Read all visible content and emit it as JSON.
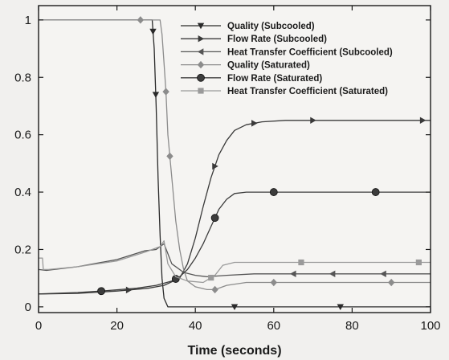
{
  "chart_data": {
    "type": "line",
    "title": "",
    "xlabel": "Time (seconds)",
    "ylabel": "",
    "xlim": [
      0,
      100
    ],
    "ylim": [
      -0.02,
      1.05
    ],
    "xticks": [
      "0",
      "20",
      "40",
      "60",
      "80",
      "100"
    ],
    "xtick_values": [
      0,
      20,
      40,
      60,
      80,
      100
    ],
    "yticks": [
      "0",
      "0.2",
      "0.4",
      "0.6",
      "0.8",
      "1"
    ],
    "ytick_values": [
      0,
      0.2,
      0.4,
      0.6,
      0.8,
      1
    ],
    "grid": false,
    "legend_position": "top-right",
    "series": [
      {
        "name": "Quality (Subcooled)",
        "color": "#2a2a2a",
        "marker": "triangle-down",
        "points": [
          [
            0,
            1
          ],
          [
            29,
            1
          ],
          [
            29.5,
            0.9
          ],
          [
            30,
            0.7
          ],
          [
            30.5,
            0.45
          ],
          [
            31,
            0.25
          ],
          [
            31.5,
            0.1
          ],
          [
            32,
            0.03
          ],
          [
            33,
            0
          ],
          [
            40,
            0
          ],
          [
            50,
            0
          ],
          [
            60,
            0
          ],
          [
            70,
            0
          ],
          [
            80,
            0
          ],
          [
            90,
            0
          ],
          [
            100,
            0
          ]
        ],
        "marker_x": [
          29.2,
          29.9,
          50,
          77
        ]
      },
      {
        "name": "Flow Rate (Subcooled)",
        "color": "#3a3a3a",
        "marker": "triangle-right",
        "points": [
          [
            0,
            0.045
          ],
          [
            10,
            0.047
          ],
          [
            20,
            0.055
          ],
          [
            28,
            0.065
          ],
          [
            32,
            0.075
          ],
          [
            36,
            0.1
          ],
          [
            38,
            0.15
          ],
          [
            40,
            0.24
          ],
          [
            42,
            0.35
          ],
          [
            44,
            0.45
          ],
          [
            46,
            0.53
          ],
          [
            48,
            0.58
          ],
          [
            50,
            0.615
          ],
          [
            53,
            0.635
          ],
          [
            57,
            0.645
          ],
          [
            63,
            0.65
          ],
          [
            75,
            0.65
          ],
          [
            100,
            0.65
          ]
        ],
        "marker_x": [
          23,
          45,
          55,
          70,
          98
        ]
      },
      {
        "name": "Heat Transfer Coefficient (Subcooled)",
        "color": "#555555",
        "marker": "triangle-left",
        "points": [
          [
            0,
            0.13
          ],
          [
            2,
            0.127
          ],
          [
            10,
            0.14
          ],
          [
            20,
            0.165
          ],
          [
            27,
            0.195
          ],
          [
            30,
            0.2
          ],
          [
            32,
            0.22
          ],
          [
            34,
            0.15
          ],
          [
            37,
            0.12
          ],
          [
            40,
            0.11
          ],
          [
            43,
            0.105
          ],
          [
            48,
            0.11
          ],
          [
            55,
            0.115
          ],
          [
            70,
            0.115
          ],
          [
            100,
            0.115
          ]
        ],
        "marker_x": [
          65,
          75,
          88
        ]
      },
      {
        "name": "Quality (Saturated)",
        "color": "#8c8c8c",
        "marker": "diamond",
        "points": [
          [
            0,
            1
          ],
          [
            26,
            1
          ],
          [
            31,
            1
          ],
          [
            31.5,
            0.95
          ],
          [
            32,
            0.85
          ],
          [
            32.5,
            0.75
          ],
          [
            33,
            0.6
          ],
          [
            34,
            0.45
          ],
          [
            35,
            0.3
          ],
          [
            36,
            0.2
          ],
          [
            37,
            0.13
          ],
          [
            38,
            0.09
          ],
          [
            40,
            0.07
          ],
          [
            43,
            0.06
          ],
          [
            45,
            0.06
          ],
          [
            48,
            0.075
          ],
          [
            53,
            0.085
          ],
          [
            70,
            0.085
          ],
          [
            100,
            0.085
          ]
        ],
        "marker_x": [
          26,
          32.5,
          33.5,
          45,
          60,
          90
        ]
      },
      {
        "name": "Flow Rate (Saturated)",
        "color": "#3c3c3c",
        "marker": "circle",
        "points": [
          [
            0,
            0.045
          ],
          [
            10,
            0.05
          ],
          [
            16,
            0.055
          ],
          [
            25,
            0.065
          ],
          [
            30,
            0.075
          ],
          [
            34,
            0.09
          ],
          [
            36,
            0.105
          ],
          [
            38,
            0.13
          ],
          [
            40,
            0.17
          ],
          [
            42,
            0.22
          ],
          [
            44,
            0.28
          ],
          [
            46,
            0.34
          ],
          [
            48,
            0.375
          ],
          [
            50,
            0.395
          ],
          [
            53,
            0.4
          ],
          [
            60,
            0.4
          ],
          [
            87,
            0.4
          ],
          [
            100,
            0.4
          ]
        ],
        "marker_x": [
          16,
          35,
          45,
          60,
          86
        ]
      },
      {
        "name": "Heat Transfer Coefficient (Saturated)",
        "color": "#9a9a9a",
        "marker": "square",
        "points": [
          [
            0,
            0.17
          ],
          [
            1,
            0.17
          ],
          [
            1.2,
            0.13
          ],
          [
            2.5,
            0.13
          ],
          [
            10,
            0.14
          ],
          [
            20,
            0.16
          ],
          [
            27,
            0.19
          ],
          [
            31,
            0.21
          ],
          [
            32,
            0.23
          ],
          [
            33,
            0.15
          ],
          [
            35,
            0.105
          ],
          [
            38,
            0.09
          ],
          [
            42,
            0.085
          ],
          [
            45,
            0.11
          ],
          [
            47,
            0.145
          ],
          [
            50,
            0.155
          ],
          [
            60,
            0.155
          ],
          [
            100,
            0.155
          ]
        ],
        "marker_x": [
          44,
          67,
          97
        ]
      }
    ]
  }
}
